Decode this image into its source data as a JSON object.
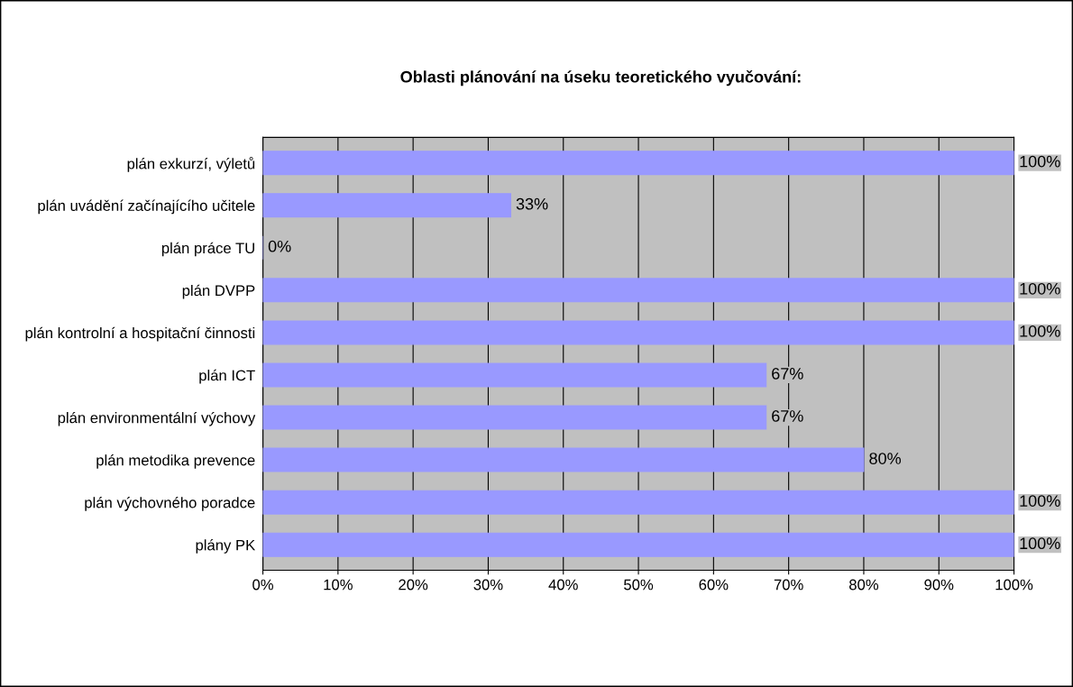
{
  "chart_data": {
    "type": "bar",
    "orientation": "horizontal",
    "title": "Oblasti plánování na úseku teoretického vyučování:",
    "categories": [
      "plán exkurzí, výletů",
      "plán uvádění začínajícího učitele",
      "plán práce TU",
      "plán DVPP",
      "plán kontrolní a hospitační činnosti",
      "plán ICT",
      "plán environmentální výchovy",
      "plán metodika prevence",
      "plán výchovného poradce",
      "plány PK"
    ],
    "values": [
      100,
      33,
      0,
      100,
      100,
      67,
      67,
      80,
      100,
      100
    ],
    "value_labels": [
      "100%",
      "33%",
      "0%",
      "100%",
      "100%",
      "67%",
      "67%",
      "80%",
      "100%",
      "100%"
    ],
    "color": "#9999ff",
    "xlim": [
      0,
      100
    ],
    "xticks": [
      {
        "value": 0,
        "label": "0%"
      },
      {
        "value": 10,
        "label": "10%"
      },
      {
        "value": 20,
        "label": "20%"
      },
      {
        "value": 30,
        "label": "30%"
      },
      {
        "value": 40,
        "label": "40%"
      },
      {
        "value": 50,
        "label": "50%"
      },
      {
        "value": 60,
        "label": "60%"
      },
      {
        "value": 70,
        "label": "70%"
      },
      {
        "value": 80,
        "label": "80%"
      },
      {
        "value": 90,
        "label": "90%"
      },
      {
        "value": 100,
        "label": "100%"
      }
    ],
    "grid": "x",
    "legend": false
  }
}
